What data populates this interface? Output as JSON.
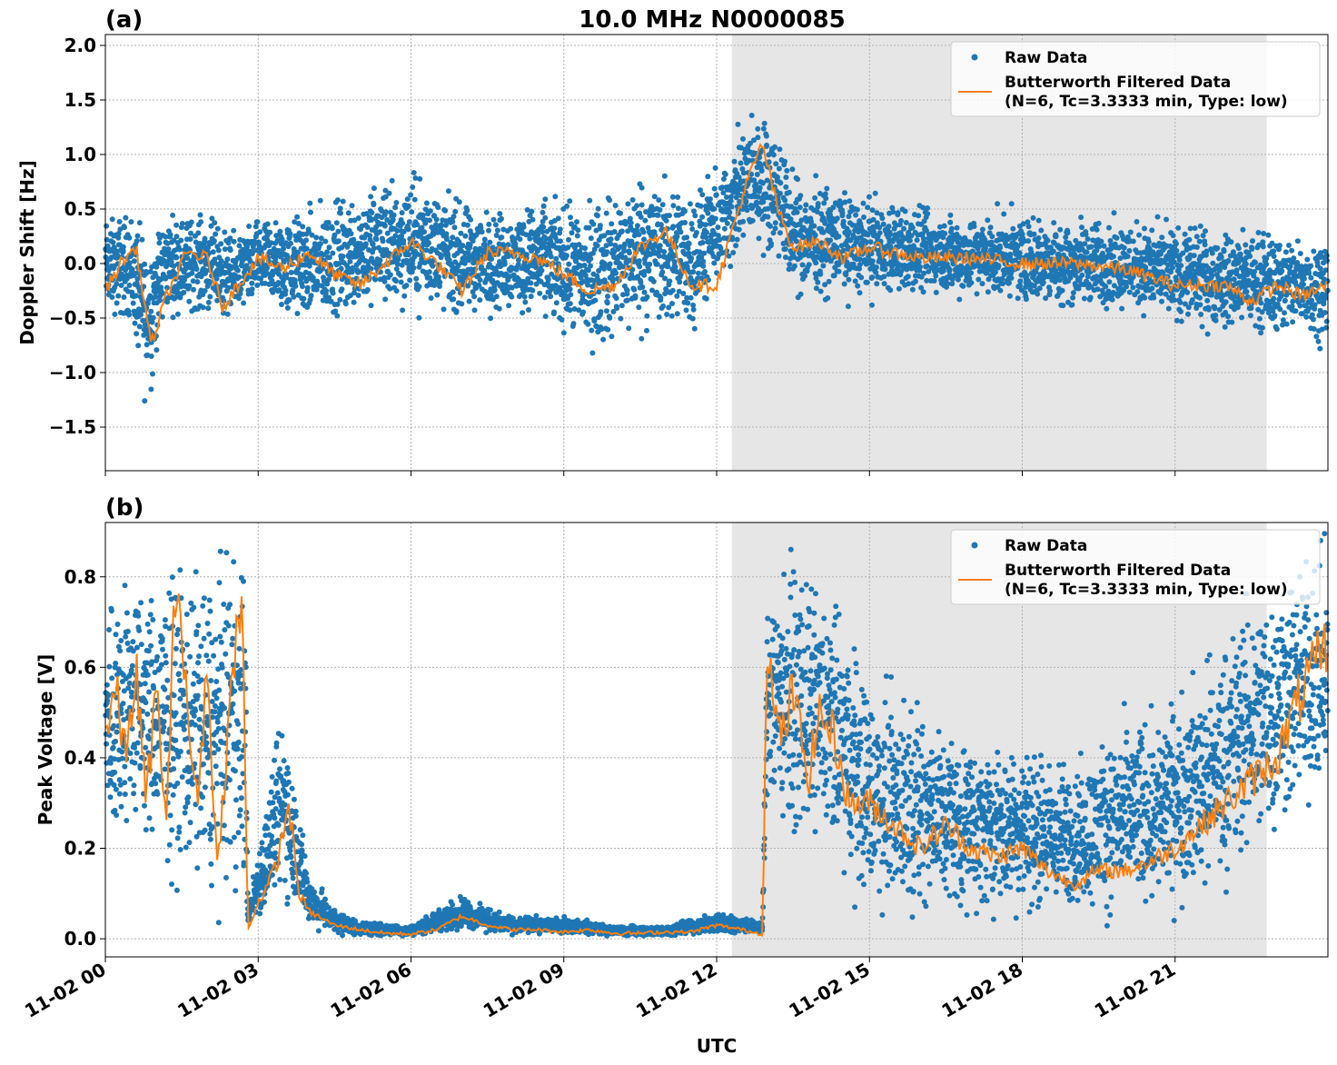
{
  "title": "10.0 MHz N0000085",
  "xlabel": "UTC",
  "x_tick_labels": [
    "11-02 00",
    "11-02 03",
    "11-02 06",
    "11-02 09",
    "11-02 12",
    "11-02 15",
    "11-02 18",
    "11-02 21"
  ],
  "legend": {
    "raw": "Raw Data",
    "filtered_line1": "Butterworth Filtered Data",
    "filtered_line2": "(N=6, Tc=3.3333 min, Type: low)"
  },
  "colors": {
    "raw": "#1f77b4",
    "filtered": "#ff7f0e",
    "shade": "#e6e6e6",
    "grid": "#b0b0b0"
  },
  "chart_data": [
    {
      "type": "scatter",
      "panel_label": "(a)",
      "title": "10.0 MHz N0000085",
      "ylabel": "Doppler Shift [Hz]",
      "xlim_hours": [
        0,
        24
      ],
      "ylim": [
        -1.9,
        2.1
      ],
      "yticks": [
        -1.5,
        -1.0,
        -0.5,
        0.0,
        0.5,
        1.0,
        1.5,
        2.0
      ],
      "ytick_labels": [
        "−1.5",
        "−1.0",
        "−0.5",
        "0.0",
        "0.5",
        "1.0",
        "1.5",
        "2.0"
      ],
      "grid": true,
      "legend_position": "upper right",
      "shaded_interval_hours": [
        12.3,
        22.8
      ],
      "series": [
        {
          "name": "Raw Data",
          "kind": "scatter",
          "note": "dense cloud, spread shown as lower/upper envelope",
          "x": [
            0,
            0.5,
            0.8,
            1.2,
            2,
            2.5,
            3,
            3.5,
            4,
            4.5,
            5,
            5.5,
            6,
            6.5,
            7,
            7.5,
            8,
            8.5,
            9,
            9.5,
            10,
            10.5,
            11,
            11.5,
            12,
            12.5,
            12.8,
            13.2,
            13.5,
            14,
            15,
            16,
            17,
            18,
            19,
            20,
            21,
            22,
            23,
            24
          ],
          "lower": [
            -0.5,
            -0.6,
            -1.4,
            -0.5,
            -0.5,
            -0.55,
            -0.4,
            -0.55,
            -0.6,
            -0.6,
            -0.5,
            -0.5,
            -0.5,
            -0.5,
            -0.55,
            -0.5,
            -0.5,
            -0.55,
            -0.7,
            -0.9,
            -0.8,
            -0.7,
            -0.7,
            -0.7,
            -0.3,
            0.0,
            0.1,
            0.0,
            -0.35,
            -0.35,
            -0.35,
            -0.35,
            -0.35,
            -0.4,
            -0.45,
            -0.45,
            -0.6,
            -0.65,
            -0.7,
            -0.75
          ],
          "upper": [
            0.45,
            0.55,
            0.35,
            0.5,
            0.5,
            0.3,
            0.45,
            0.5,
            0.55,
            0.65,
            0.75,
            0.85,
            0.9,
            0.8,
            0.6,
            0.55,
            0.55,
            0.65,
            0.6,
            0.65,
            0.75,
            0.95,
            0.85,
            0.75,
            0.9,
            1.35,
            1.5,
            1.3,
            0.85,
            0.8,
            0.65,
            0.55,
            0.5,
            0.5,
            0.45,
            0.45,
            0.4,
            0.35,
            0.35,
            0.3
          ]
        },
        {
          "name": "Butterworth Filtered Data (N=6, Tc=3.3333 min, Type: low)",
          "kind": "line",
          "x": [
            0,
            0.3,
            0.6,
            0.9,
            1.2,
            1.6,
            2.0,
            2.3,
            2.6,
            3.0,
            3.5,
            4.0,
            4.5,
            5.0,
            5.5,
            6.0,
            6.5,
            7.0,
            7.5,
            8.0,
            8.5,
            9.0,
            9.5,
            10.0,
            10.5,
            11.0,
            11.5,
            12.0,
            12.3,
            12.6,
            12.9,
            13.2,
            13.5,
            14.0,
            14.5,
            15.0,
            16.0,
            17.0,
            18.0,
            19.0,
            20.0,
            21.0,
            22.0,
            22.5,
            23.0,
            23.5,
            24.0
          ],
          "y": [
            -0.25,
            0.0,
            0.15,
            -0.75,
            -0.3,
            0.1,
            0.05,
            -0.4,
            -0.2,
            0.05,
            -0.05,
            0.1,
            -0.1,
            -0.2,
            0.0,
            0.2,
            0.0,
            -0.25,
            0.1,
            0.1,
            0.05,
            -0.1,
            -0.25,
            -0.2,
            0.15,
            0.3,
            -0.2,
            -0.2,
            0.3,
            0.75,
            1.1,
            0.5,
            0.15,
            0.2,
            0.05,
            0.15,
            0.05,
            0.05,
            0.0,
            0.0,
            -0.05,
            -0.2,
            -0.2,
            -0.35,
            -0.2,
            -0.3,
            -0.2
          ]
        }
      ]
    },
    {
      "type": "scatter",
      "panel_label": "(b)",
      "ylabel": "Peak Voltage [V]",
      "xlabel": "UTC",
      "xlim_hours": [
        0,
        24
      ],
      "ylim": [
        -0.04,
        0.92
      ],
      "yticks": [
        0.0,
        0.2,
        0.4,
        0.6,
        0.8
      ],
      "ytick_labels": [
        "0.0",
        "0.2",
        "0.4",
        "0.6",
        "0.8"
      ],
      "grid": true,
      "legend_position": "upper right",
      "shaded_interval_hours": [
        12.3,
        22.8
      ],
      "series": [
        {
          "name": "Raw Data",
          "kind": "scatter",
          "note": "dense cloud, spread shown as lower/upper envelope",
          "x": [
            0,
            0.5,
            1.0,
            1.5,
            2.0,
            2.5,
            2.75,
            2.8,
            3.2,
            3.5,
            4.0,
            4.5,
            5.0,
            6.0,
            7.0,
            7.5,
            8.0,
            9.0,
            10.0,
            11.0,
            12.0,
            12.5,
            12.9,
            13.0,
            13.5,
            14.0,
            14.5,
            15.0,
            16.0,
            17.0,
            18.0,
            19.0,
            20.0,
            21.0,
            22.0,
            22.5,
            23.0,
            23.5,
            24.0
          ],
          "lower": [
            0.15,
            0.2,
            0.15,
            0.1,
            0.05,
            0.1,
            0.02,
            0.02,
            0.05,
            0.08,
            0.02,
            0.01,
            0.005,
            0.005,
            0.02,
            0.01,
            0.01,
            0.01,
            0.005,
            0.005,
            0.01,
            0.01,
            0.01,
            0.25,
            0.2,
            0.2,
            0.1,
            0.05,
            0.04,
            0.04,
            0.04,
            0.04,
            0.04,
            0.05,
            0.1,
            0.15,
            0.2,
            0.25,
            0.3
          ],
          "upper": [
            0.8,
            0.85,
            0.8,
            0.88,
            0.85,
            0.88,
            0.88,
            0.08,
            0.35,
            0.55,
            0.15,
            0.07,
            0.04,
            0.03,
            0.1,
            0.07,
            0.05,
            0.05,
            0.03,
            0.03,
            0.06,
            0.05,
            0.04,
            0.87,
            0.85,
            0.8,
            0.75,
            0.6,
            0.55,
            0.45,
            0.45,
            0.4,
            0.5,
            0.55,
            0.7,
            0.8,
            0.85,
            0.87,
            0.88
          ]
        },
        {
          "name": "Butterworth Filtered Data (N=6, Tc=3.3333 min, Type: low)",
          "kind": "line",
          "x": [
            0,
            0.2,
            0.4,
            0.6,
            0.8,
            1.0,
            1.2,
            1.4,
            1.6,
            1.8,
            2.0,
            2.2,
            2.4,
            2.6,
            2.7,
            2.75,
            2.8,
            3.0,
            3.2,
            3.4,
            3.6,
            3.8,
            4.0,
            4.5,
            5.0,
            5.5,
            6.0,
            6.5,
            7.0,
            7.5,
            8.0,
            8.5,
            9.0,
            9.5,
            10.0,
            10.5,
            11.0,
            11.5,
            12.0,
            12.5,
            12.9,
            13.0,
            13.1,
            13.3,
            13.5,
            13.8,
            14.0,
            14.3,
            14.6,
            15.0,
            15.5,
            16.0,
            16.5,
            17.0,
            17.5,
            18.0,
            18.5,
            19.0,
            19.5,
            20.0,
            20.5,
            21.0,
            21.5,
            22.0,
            22.5,
            23.0,
            23.5,
            24.0
          ],
          "y": [
            0.45,
            0.55,
            0.4,
            0.6,
            0.3,
            0.55,
            0.25,
            0.85,
            0.5,
            0.3,
            0.6,
            0.15,
            0.45,
            0.7,
            0.72,
            0.3,
            0.02,
            0.08,
            0.12,
            0.18,
            0.3,
            0.1,
            0.06,
            0.03,
            0.02,
            0.012,
            0.01,
            0.02,
            0.05,
            0.03,
            0.02,
            0.02,
            0.015,
            0.02,
            0.012,
            0.012,
            0.015,
            0.015,
            0.03,
            0.02,
            0.01,
            0.72,
            0.5,
            0.45,
            0.55,
            0.35,
            0.5,
            0.45,
            0.3,
            0.3,
            0.25,
            0.2,
            0.25,
            0.2,
            0.18,
            0.2,
            0.15,
            0.12,
            0.15,
            0.15,
            0.17,
            0.2,
            0.25,
            0.3,
            0.35,
            0.4,
            0.55,
            0.65
          ]
        }
      ]
    }
  ]
}
